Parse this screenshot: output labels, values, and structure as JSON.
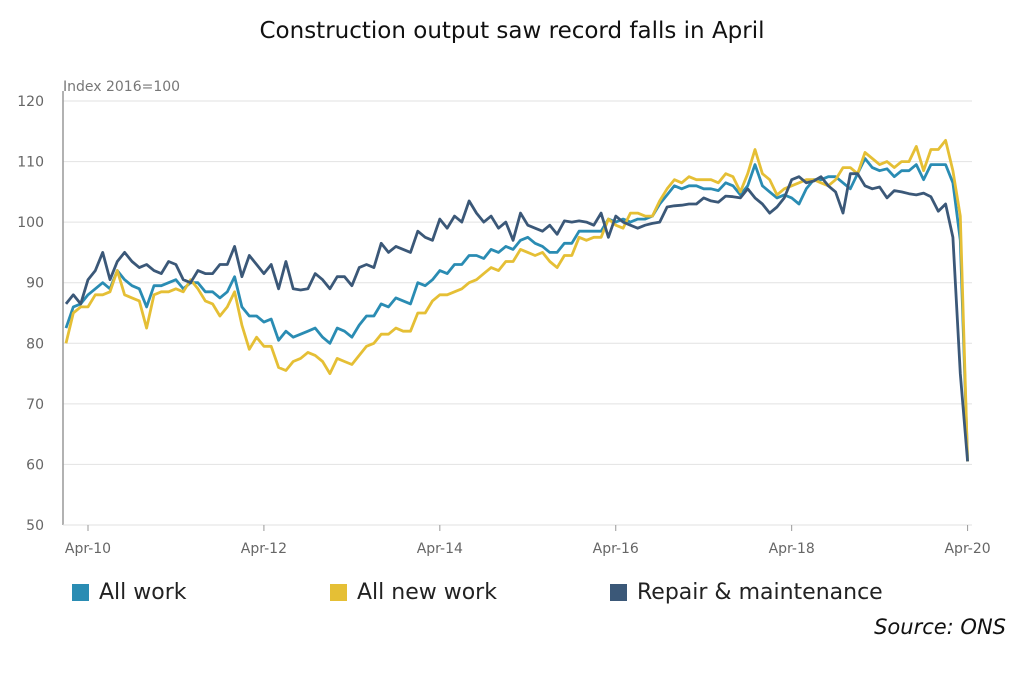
{
  "chart_data": {
    "type": "line",
    "title": "Construction output saw record falls in April",
    "ylabel": "Index 2016=100",
    "xlabel": "",
    "ylim": [
      50,
      120
    ],
    "yticks": [
      50,
      60,
      70,
      80,
      90,
      100,
      110,
      120
    ],
    "xticks": [
      "Apr-10",
      "Apr-12",
      "Apr-14",
      "Apr-16",
      "Apr-18",
      "Apr-20"
    ],
    "x_start": "Jan-10",
    "x_end": "Apr-20",
    "x_frequency": "monthly",
    "grid": "horizontal",
    "legend_position": "bottom",
    "source": "Source: ONS",
    "series": [
      {
        "name": "All work",
        "color": "#2a8cb3",
        "values": [
          82.5,
          86,
          86.5,
          88,
          89,
          90,
          89,
          92,
          90.5,
          89.5,
          89,
          86,
          89.5,
          89.5,
          90,
          90.5,
          89,
          90,
          90,
          88.5,
          88.5,
          87.5,
          88.5,
          91,
          86,
          84.5,
          84.5,
          83.5,
          84,
          80.5,
          82,
          81,
          81.5,
          82,
          82.5,
          81,
          80,
          82.5,
          82,
          81,
          83,
          84.5,
          84.5,
          86.5,
          86,
          87.5,
          87,
          86.5,
          90,
          89.5,
          90.5,
          92,
          91.5,
          93,
          93,
          94.5,
          94.5,
          94,
          95.5,
          95,
          96,
          95.5,
          97,
          97.5,
          96.5,
          96,
          95,
          95,
          96.5,
          96.5,
          98.5,
          98.5,
          98.5,
          98.5,
          100.5,
          100,
          100.5,
          100,
          100.5,
          100.5,
          101,
          103,
          104.5,
          106,
          105.5,
          106,
          106,
          105.5,
          105.5,
          105.2,
          106.5,
          106,
          104.5,
          106,
          109.5,
          106,
          105,
          104,
          104.5,
          104,
          103,
          105.5,
          107,
          107,
          107.5,
          107.5,
          106.5,
          105.5,
          108,
          110.5,
          109,
          108.5,
          108.8,
          107.5,
          108.5,
          108.5,
          109.5,
          107,
          109.5,
          109.5,
          109.5,
          106.5,
          97,
          60.5
        ]
      },
      {
        "name": "All new work",
        "color": "#e5bf35",
        "values": [
          80,
          85,
          86,
          86,
          88,
          88,
          88.5,
          92,
          88,
          87.5,
          87,
          82.5,
          88,
          88.5,
          88.5,
          89,
          88.5,
          90.5,
          89,
          87,
          86.5,
          84.5,
          86,
          88.5,
          83,
          79,
          81,
          79.5,
          79.5,
          76,
          75.5,
          77,
          77.5,
          78.5,
          78,
          77,
          75,
          77.5,
          77,
          76.5,
          78,
          79.5,
          80,
          81.5,
          81.5,
          82.5,
          82,
          82,
          85,
          85,
          87,
          88,
          88,
          88.5,
          89,
          90,
          90.5,
          91.5,
          92.5,
          92,
          93.5,
          93.5,
          95.5,
          95,
          94.5,
          95,
          93.5,
          92.5,
          94.5,
          94.5,
          97.5,
          97,
          97.5,
          97.5,
          100.5,
          99.5,
          99,
          101.5,
          101.5,
          101,
          101,
          103.5,
          105.5,
          107,
          106.5,
          107.5,
          107,
          107,
          107,
          106.5,
          108,
          107.5,
          105,
          108,
          112,
          108,
          107,
          104.5,
          105.5,
          106,
          106.5,
          107,
          107,
          106.5,
          106,
          107,
          109,
          109,
          108,
          111.5,
          110.5,
          109.5,
          110,
          109,
          110,
          110,
          112.5,
          108.5,
          112,
          112,
          113.5,
          108.5,
          101,
          60.5
        ]
      },
      {
        "name": "Repair & maintenance",
        "color": "#3b5878",
        "values": [
          86.5,
          88,
          86.5,
          90.5,
          92,
          95,
          90.5,
          93.5,
          95,
          93.5,
          92.5,
          93,
          92,
          91.5,
          93.5,
          93,
          90.5,
          90,
          92,
          91.5,
          91.5,
          93,
          93,
          96,
          91,
          94.5,
          93,
          91.5,
          93,
          89,
          93.5,
          89,
          88.8,
          89,
          91.5,
          90.5,
          89,
          91,
          91,
          89.5,
          92.5,
          93,
          92.5,
          96.5,
          95,
          96,
          95.5,
          95,
          98.5,
          97.5,
          97,
          100.5,
          99,
          101,
          100,
          103.5,
          101.5,
          100,
          101,
          99,
          100,
          97,
          101.5,
          99.5,
          99,
          98.5,
          99.5,
          98,
          100.2,
          100,
          100.2,
          100,
          99.5,
          101.5,
          97.5,
          101,
          100,
          99.5,
          99,
          99.5,
          99.8,
          100,
          102.5,
          102.7,
          102.8,
          103,
          103,
          104,
          103.5,
          103.3,
          104.3,
          104.2,
          104,
          105.5,
          104,
          103,
          101.5,
          102.5,
          104,
          107,
          107.5,
          106.5,
          106.8,
          107.5,
          106,
          105,
          101.5,
          108,
          108,
          106,
          105.5,
          105.8,
          104,
          105.2,
          105,
          104.7,
          104.5,
          104.8,
          104.2,
          101.8,
          103,
          97.5,
          75,
          60.5
        ]
      }
    ]
  }
}
